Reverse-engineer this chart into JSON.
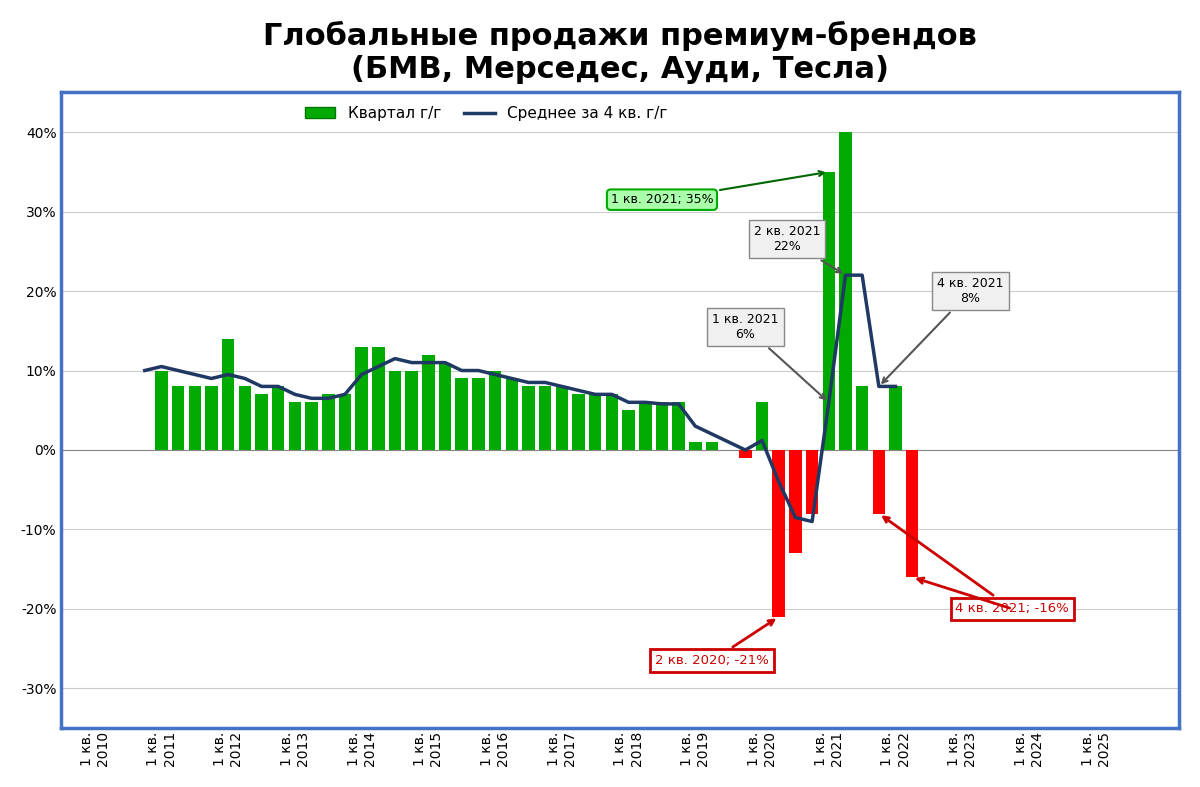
{
  "title": "Глобальные продажи премиум-брендов\n(БМВ, Мерседес, Ауди, Тесла)",
  "legend_bar": "Квартал г/г",
  "legend_line": "Среднее за 4 кв. г/г",
  "background_color": "#FFFFFF",
  "border_color": "#4472C4",
  "bar_color_positive": "#00AA00",
  "bar_color_negative": "#FF0000",
  "line_color": "#1F3864",
  "line_width": 2.5,
  "grid_color": "#CCCCCC",
  "title_fontsize": 22,
  "tick_fontsize": 10,
  "legend_fontsize": 11,
  "ylim": [
    -0.35,
    0.45
  ],
  "yticks": [
    -0.3,
    -0.2,
    -0.1,
    0.0,
    0.1,
    0.2,
    0.3,
    0.4
  ],
  "bar_values": [
    0.0,
    0.0,
    0.0,
    0.0,
    0.1,
    0.08,
    0.08,
    0.08,
    0.14,
    0.08,
    0.07,
    0.08,
    0.06,
    0.06,
    0.07,
    0.07,
    0.13,
    0.13,
    0.1,
    0.1,
    0.12,
    0.11,
    0.09,
    0.09,
    0.1,
    0.09,
    0.08,
    0.08,
    0.08,
    0.07,
    0.07,
    0.07,
    0.05,
    0.06,
    0.06,
    0.06,
    0.01,
    0.01,
    0.0,
    -0.01,
    0.06,
    -0.21,
    -0.13,
    -0.08,
    0.35,
    0.4,
    0.08,
    -0.08,
    0.08,
    -0.16,
    0.0,
    0.0,
    0.0,
    0.0,
    0.0,
    0.0,
    0.0,
    0.0,
    0.0,
    0.0,
    0.0,
    0.0,
    0.0,
    0.0
  ],
  "line_values": [
    null,
    null,
    null,
    0.1,
    0.105,
    0.1,
    0.095,
    0.09,
    0.095,
    0.09,
    0.08,
    0.08,
    0.07,
    0.065,
    0.065,
    0.07,
    0.095,
    0.105,
    0.115,
    0.11,
    0.11,
    0.11,
    0.1,
    0.1,
    0.095,
    0.09,
    0.085,
    0.085,
    0.08,
    0.075,
    0.07,
    0.07,
    0.06,
    0.06,
    0.058,
    0.058,
    0.03,
    0.02,
    0.01,
    0.0,
    0.012,
    -0.04,
    -0.085,
    -0.09,
    0.06,
    0.22,
    0.22,
    0.08,
    0.08,
    null,
    null,
    null,
    null,
    null,
    null,
    null,
    null,
    null,
    null,
    null,
    null,
    null,
    null,
    null
  ],
  "tick_positions": [
    0,
    4,
    8,
    12,
    16,
    20,
    24,
    28,
    32,
    36,
    40,
    44,
    48,
    52,
    56,
    60
  ],
  "tick_labels": [
    "1 кв.\n2010",
    "1 кв.\n2011",
    "1 кв.\n2012",
    "1 кв.\n2013",
    "1 кв.\n2014",
    "1 кв.\n2015",
    "1 кв.\n2016",
    "1 кв.\n2017",
    "1 кв.\n2018",
    "1 кв.\n2019",
    "1 кв.\n2020",
    "1 кв.\n2021",
    "1 кв.\n2022",
    "1 кв.\n2023",
    "1 кв.\n2024",
    "1 кв.\n2025"
  ]
}
